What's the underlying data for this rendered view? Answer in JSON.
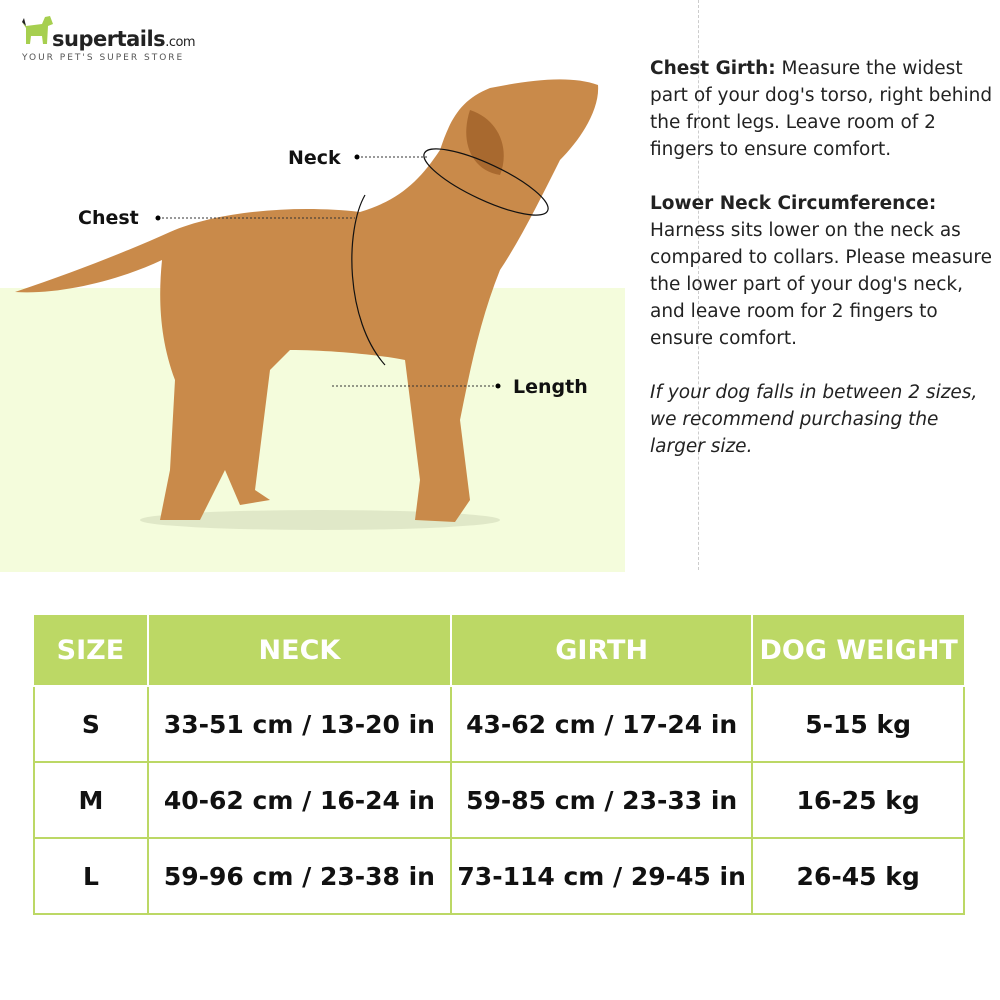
{
  "brand": {
    "name": "supertails",
    "domain": ".com",
    "tagline": "YOUR PET'S SUPER STORE",
    "color": "#a6cf4f"
  },
  "labels": {
    "neck": "Neck",
    "chest": "Chest",
    "length": "Length"
  },
  "info": {
    "chest_title": "Chest Girth:",
    "chest_text": " Measure the widest part of your dog's torso, right behind the front legs. Leave room of 2 fingers to ensure comfort.",
    "neck_title": "Lower Neck Circumference:",
    "neck_text": " Harness sits lower on the neck as compared to collars. Please measure the lower part of your dog's neck, and leave room for 2 fingers to ensure comfort.",
    "note": "If your dog falls in between 2 sizes, we recommend purchasing the larger size."
  },
  "table": {
    "headers": [
      "SIZE",
      "NECK",
      "GIRTH",
      "DOG WEIGHT"
    ],
    "rows": [
      [
        "S",
        "33-51 cm / 13-20 in",
        "43-62 cm / 17-24 in",
        "5-15 kg"
      ],
      [
        "M",
        "40-62 cm / 16-24 in",
        "59-85 cm / 23-33 in",
        "16-25 kg"
      ],
      [
        "L",
        "59-96 cm / 23-38 in",
        "73-114 cm / 29-45 in",
        "26-45 kg"
      ]
    ]
  },
  "colors": {
    "header": "#bcd865",
    "ground": "#f4fcdc"
  }
}
